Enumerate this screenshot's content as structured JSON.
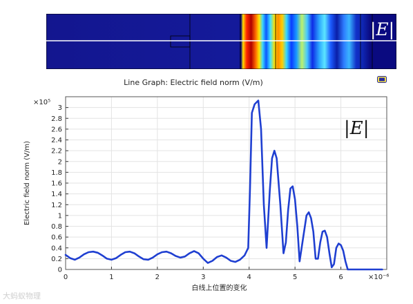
{
  "field_image": {
    "label": "|E|"
  },
  "plot_title": "Line Graph: Electric field norm (V/m)",
  "watermark": "大蚂蚁物理",
  "chart_data": {
    "type": "line",
    "title": "Line Graph: Electric field norm (V/m)",
    "xlabel": "白线上位置的变化",
    "ylabel": "Electric field norm (V/m)",
    "x_multiplier": "×10⁻⁶",
    "y_multiplier": "×10⁵",
    "xlim": [
      0,
      7.0
    ],
    "ylim": [
      0,
      3.2
    ],
    "x_ticks": [
      0,
      1,
      2,
      3,
      4,
      5,
      6
    ],
    "y_ticks": [
      0,
      0.2,
      0.4,
      0.6,
      0.8,
      1,
      1.2,
      1.4,
      1.6,
      1.8,
      2,
      2.2,
      2.4,
      2.6,
      2.8,
      3
    ],
    "x_tick_labels": [
      "0",
      "1",
      "2",
      "3",
      "4",
      "5",
      "6"
    ],
    "y_tick_labels": [
      "0",
      "0.2",
      "0.4",
      "0.6",
      "0.8",
      "1",
      "1.2",
      "1.4",
      "1.6",
      "1.8",
      "2",
      "2.2",
      "2.4",
      "2.6",
      "2.8",
      "3"
    ],
    "annotation": "|E|",
    "grid": true,
    "series": [
      {
        "color": "#1f3fd1",
        "x": [
          0,
          0.1,
          0.2,
          0.3,
          0.4,
          0.5,
          0.6,
          0.7,
          0.8,
          0.9,
          1.0,
          1.1,
          1.2,
          1.3,
          1.4,
          1.5,
          1.6,
          1.7,
          1.8,
          1.9,
          2.0,
          2.1,
          2.2,
          2.3,
          2.4,
          2.5,
          2.6,
          2.7,
          2.8,
          2.9,
          3.0,
          3.1,
          3.2,
          3.3,
          3.4,
          3.5,
          3.6,
          3.7,
          3.8,
          3.9,
          3.98,
          4.02,
          4.06,
          4.12,
          4.2,
          4.26,
          4.32,
          4.38,
          4.45,
          4.5,
          4.55,
          4.6,
          4.68,
          4.75,
          4.8,
          4.85,
          4.9,
          4.95,
          5.0,
          5.05,
          5.1,
          5.18,
          5.25,
          5.3,
          5.35,
          5.4,
          5.45,
          5.5,
          5.55,
          5.6,
          5.65,
          5.7,
          5.75,
          5.8,
          5.85,
          5.9,
          5.95,
          6.0,
          6.05,
          6.1,
          6.15,
          6.2,
          6.25,
          6.3,
          6.35,
          6.4,
          6.45,
          6.5,
          6.55,
          6.6,
          6.65,
          6.7,
          6.8,
          6.9
        ],
        "y": [
          0.27,
          0.21,
          0.18,
          0.22,
          0.28,
          0.32,
          0.33,
          0.31,
          0.26,
          0.2,
          0.18,
          0.21,
          0.27,
          0.32,
          0.33,
          0.3,
          0.24,
          0.19,
          0.18,
          0.22,
          0.28,
          0.32,
          0.33,
          0.3,
          0.25,
          0.22,
          0.24,
          0.3,
          0.34,
          0.3,
          0.2,
          0.12,
          0.16,
          0.23,
          0.26,
          0.22,
          0.16,
          0.14,
          0.18,
          0.26,
          0.4,
          1.5,
          2.9,
          3.06,
          3.13,
          2.6,
          1.2,
          0.4,
          1.45,
          2.06,
          2.2,
          2.06,
          1.2,
          0.3,
          0.5,
          1.1,
          1.5,
          1.54,
          1.3,
          0.8,
          0.15,
          0.6,
          1.0,
          1.06,
          0.95,
          0.7,
          0.2,
          0.2,
          0.5,
          0.7,
          0.72,
          0.6,
          0.3,
          0.04,
          0.1,
          0.4,
          0.48,
          0.45,
          0.35,
          0.15,
          0.0,
          0.0,
          0.0,
          0.0,
          0.0,
          0.0,
          0.0,
          0.0,
          0.0,
          0.0,
          0.0,
          0.0,
          0.0,
          0.0
        ]
      }
    ]
  }
}
